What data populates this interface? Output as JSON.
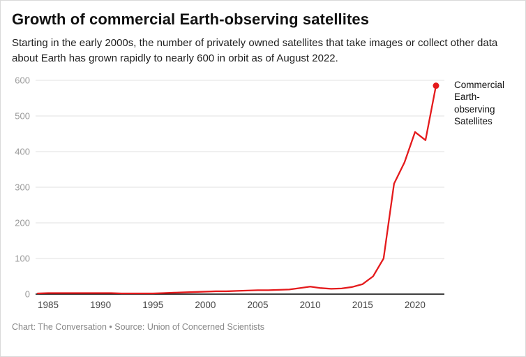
{
  "header": {
    "title": "Growth of commercial Earth-observing satellites",
    "subtitle": "Starting in the early 2000s, the number of privately owned satellites that take images or collect other data about Earth has grown rapidly to nearly 600 in orbit as of August 2022."
  },
  "footer": {
    "credit": "Chart: The Conversation • Source: Union of Concerned Scientists"
  },
  "chart_data": {
    "type": "line",
    "title": "Growth of commercial Earth-observing satellites",
    "series_label": "Commercial Earth-observing Satellites",
    "x": [
      1984,
      1985,
      1986,
      1987,
      1988,
      1989,
      1990,
      1991,
      1992,
      1993,
      1994,
      1995,
      1996,
      1997,
      1998,
      1999,
      2000,
      2001,
      2002,
      2003,
      2004,
      2005,
      2006,
      2007,
      2008,
      2009,
      2010,
      2011,
      2012,
      2013,
      2014,
      2015,
      2016,
      2017,
      2018,
      2019,
      2020,
      2021,
      2022
    ],
    "values": [
      2,
      3,
      3,
      3,
      3,
      3,
      3,
      3,
      2,
      2,
      2,
      2,
      3,
      4,
      5,
      6,
      7,
      8,
      8,
      9,
      10,
      11,
      11,
      12,
      13,
      17,
      21,
      17,
      15,
      16,
      20,
      28,
      50,
      100,
      310,
      370,
      455,
      432,
      585
    ],
    "xlim": [
      1983.8,
      2022.8
    ],
    "ylim": [
      0,
      600
    ],
    "xticks": [
      1985,
      1990,
      1995,
      2000,
      2005,
      2010,
      2015,
      2020
    ],
    "yticks": [
      0,
      100,
      200,
      300,
      400,
      500,
      600
    ],
    "grid": true,
    "legend_position": "right-annotation",
    "line_color": "#e41a1c",
    "grid_color": "#e0e0e0",
    "axis_color": "#000000",
    "ytick_color": "#9a9a9a",
    "xtick_color": "#444444"
  }
}
